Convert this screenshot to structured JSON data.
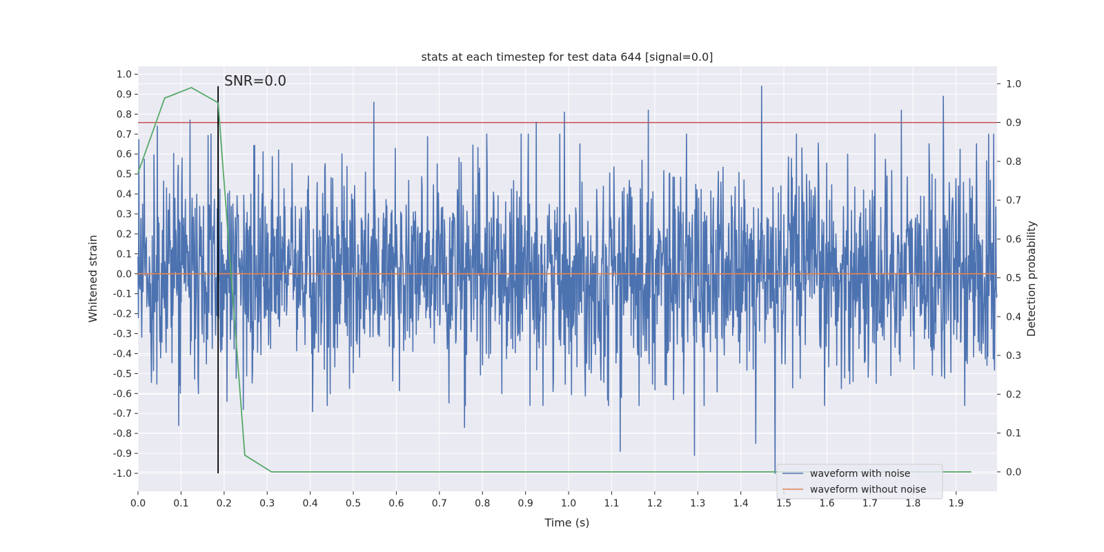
{
  "chart_data": {
    "type": "line",
    "title": "stats at each timestep for test data 644 [signal=0.0]",
    "xlabel": "Time (s)",
    "ylabel": "Whitened strain",
    "y2label": "Detection probability",
    "xlim": [
      0.0,
      1.995
    ],
    "ylim": [
      -1.09,
      1.04
    ],
    "y2lim": [
      -0.05,
      1.045
    ],
    "x_ticks": [
      0.0,
      0.1,
      0.2,
      0.3,
      0.4,
      0.5,
      0.6,
      0.7,
      0.8,
      0.9,
      1.0,
      1.1,
      1.2,
      1.3,
      1.4,
      1.5,
      1.6,
      1.7,
      1.8,
      1.9
    ],
    "x_tick_labels": [
      "0.0",
      "0.1",
      "0.2",
      "0.3",
      "0.4",
      "0.5",
      "0.6",
      "0.7",
      "0.8",
      "0.9",
      "1.0",
      "1.1",
      "1.2",
      "1.3",
      "1.4",
      "1.5",
      "1.6",
      "1.7",
      "1.8",
      "1.9"
    ],
    "y_ticks": [
      1.0,
      0.9,
      0.8,
      0.7,
      0.6,
      0.5,
      0.4,
      0.3,
      0.2,
      0.1,
      0.0,
      -0.1,
      -0.2,
      -0.3,
      -0.4,
      -0.5,
      -0.6,
      -0.7,
      -0.8,
      -0.9,
      -1.0
    ],
    "y_tick_labels": [
      "1.0",
      "0.9",
      "0.8",
      "0.7",
      "0.6",
      "0.5",
      "0.4",
      "0.3",
      "0.2",
      "0.1",
      "0.0",
      "-0.1",
      "-0.2",
      "-0.3",
      "-0.4",
      "-0.5",
      "-0.6",
      "-0.7",
      "-0.8",
      "-0.9",
      "-1.0"
    ],
    "y2_ticks": [
      1.0,
      0.9,
      0.8,
      0.7,
      0.6,
      0.5,
      0.4,
      0.3,
      0.2,
      0.1,
      0.0
    ],
    "y2_tick_labels": [
      "1.0",
      "0.9",
      "0.8",
      "0.7",
      "0.6",
      "0.5",
      "0.4",
      "0.3",
      "0.2",
      "0.1",
      "0.0"
    ],
    "noisy_waveform": {
      "name": "waveform with noise",
      "color": "#4c72b0",
      "t_start": 0.0,
      "t_end": 1.995,
      "n_samples": 2048,
      "peaks": [
        {
          "t": 0.045,
          "y": 0.74
        },
        {
          "t": 0.121,
          "y": 0.77
        },
        {
          "t": 0.186,
          "y": 0.93
        },
        {
          "t": 0.548,
          "y": 0.86
        },
        {
          "t": 0.925,
          "y": 0.76
        },
        {
          "t": 0.99,
          "y": 0.81
        },
        {
          "t": 1.185,
          "y": 0.82
        },
        {
          "t": 1.448,
          "y": 0.94
        },
        {
          "t": 1.773,
          "y": 0.82
        },
        {
          "t": 1.87,
          "y": 0.89
        },
        {
          "t": 0.095,
          "y": -0.76
        },
        {
          "t": 0.758,
          "y": -0.77
        },
        {
          "t": 1.12,
          "y": -0.89
        },
        {
          "t": 1.292,
          "y": -0.91
        },
        {
          "t": 1.435,
          "y": -0.85
        },
        {
          "t": 1.479,
          "y": -1.0
        },
        {
          "t": 0.245,
          "y": -0.68
        },
        {
          "t": 0.405,
          "y": -0.69
        }
      ]
    },
    "clean_waveform": {
      "name": "waveform without noise",
      "color": "#dd8452",
      "x": [
        0.0,
        1.995
      ],
      "y": [
        0.0,
        0.0
      ]
    },
    "detection_probability": {
      "color": "#55a868",
      "x": [
        0.0,
        0.062,
        0.124,
        0.186,
        0.248,
        0.31,
        0.372,
        0.434,
        0.496,
        0.558,
        0.62,
        0.682,
        0.744,
        0.806,
        0.868,
        0.93,
        0.992,
        1.054,
        1.116,
        1.178,
        1.24,
        1.302,
        1.364,
        1.426,
        1.488,
        1.55,
        1.612,
        1.674,
        1.736,
        1.798,
        1.86,
        1.935
      ],
      "y": [
        0.77,
        0.963,
        0.99,
        0.951,
        0.043,
        0.0,
        0.0,
        0.0,
        0.0,
        0.0,
        0.0,
        0.0,
        0.0,
        0.0,
        0.0,
        0.0,
        0.0,
        0.0,
        0.0,
        0.0,
        0.0,
        0.0,
        0.0,
        0.0,
        0.0,
        0.0,
        0.0,
        0.0,
        0.0,
        0.0,
        0.0,
        0.0
      ]
    },
    "threshold": {
      "y2": 0.9,
      "color": "#c44e52"
    },
    "snr_marker": {
      "x": 0.186,
      "y_low": -1.0,
      "y_high": 0.94,
      "label": "SNR=0.0"
    },
    "legend": {
      "position": "lower-right",
      "entries": [
        {
          "label": "waveform with noise",
          "color": "#4c72b0"
        },
        {
          "label": "waveform without noise",
          "color": "#dd8452"
        }
      ]
    },
    "grid": true,
    "background": "#eaeaf2"
  }
}
